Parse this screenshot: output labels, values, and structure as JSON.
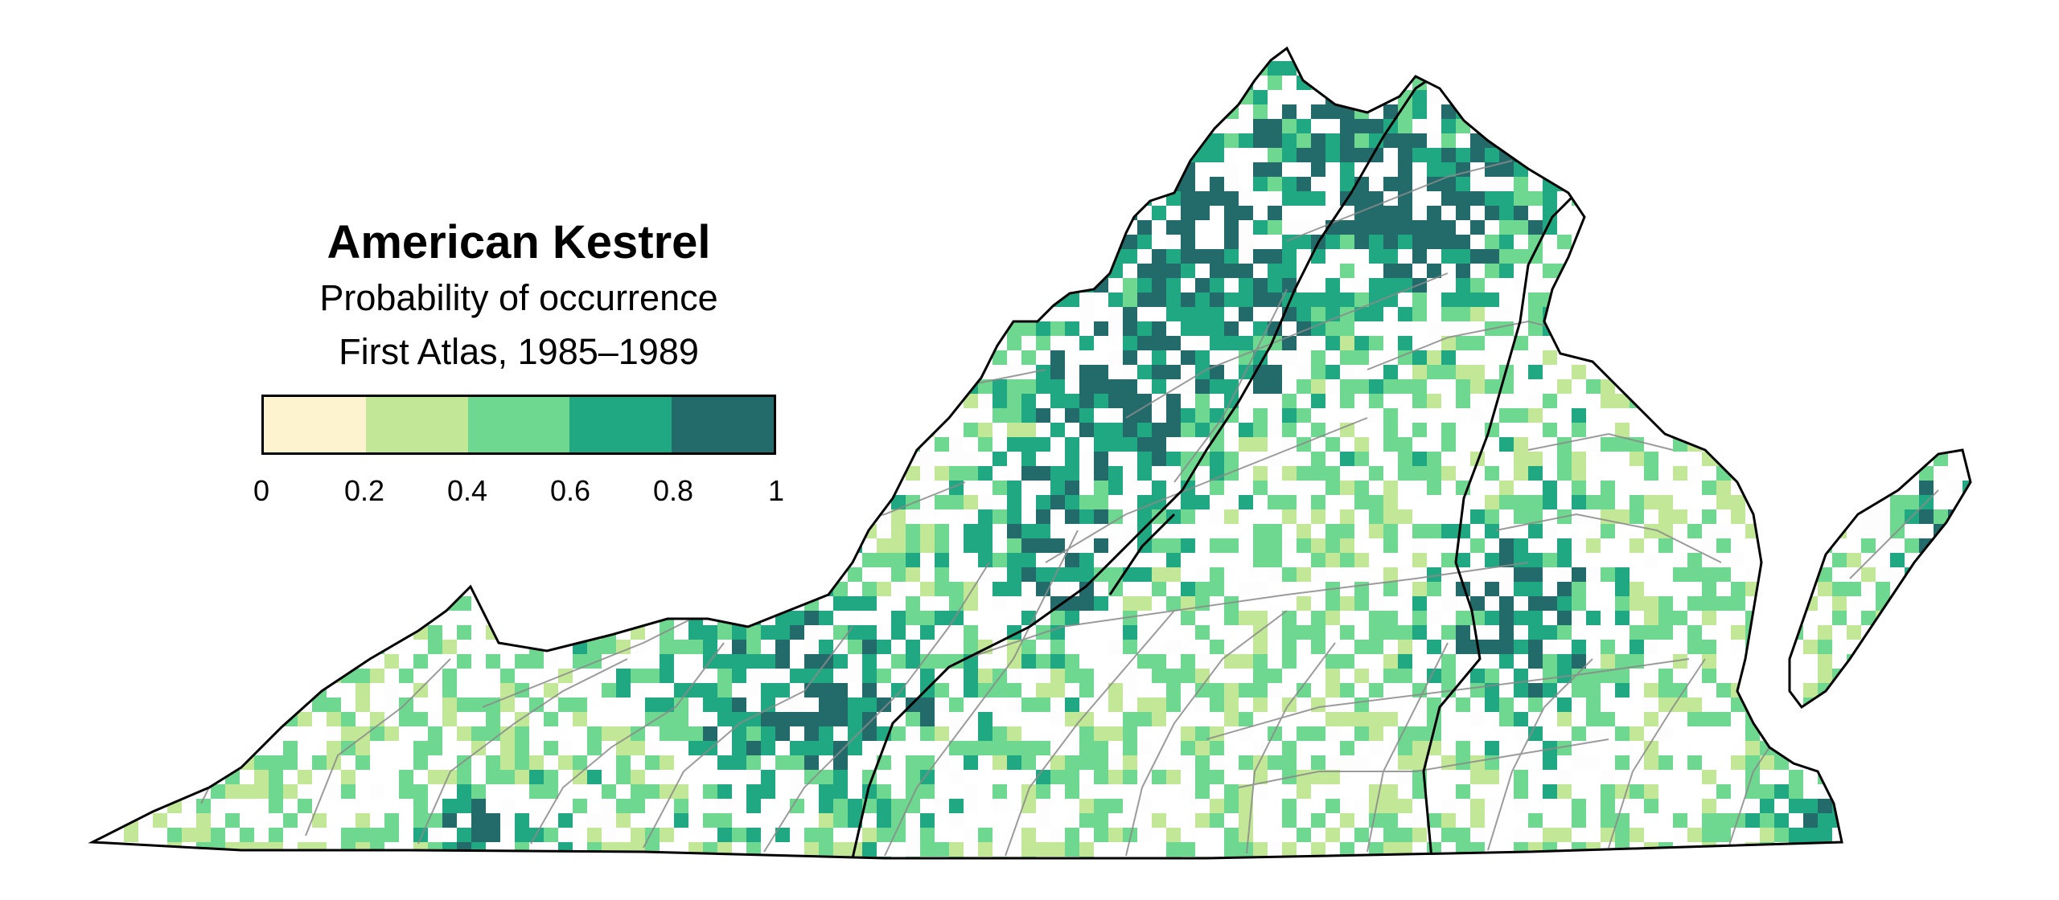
{
  "legend": {
    "title": "American Kestrel",
    "subtitle": "Probability of occurrence",
    "period": "First Atlas, 1985–1989",
    "bins": [
      {
        "from": 0,
        "to": 0.2,
        "color": "#fdf3cf"
      },
      {
        "from": 0.2,
        "to": 0.4,
        "color": "#c2e897"
      },
      {
        "from": 0.4,
        "to": 0.6,
        "color": "#6ed890"
      },
      {
        "from": 0.6,
        "to": 0.8,
        "color": "#1fa882"
      },
      {
        "from": 0.8,
        "to": 1,
        "color": "#236b6b"
      }
    ],
    "tick_labels": [
      "0",
      "0.2",
      "0.4",
      "0.6",
      "0.8",
      "1"
    ]
  },
  "map": {
    "region": "Virginia",
    "block_color_empty": "#fdfdfd",
    "outline_color": "#000000",
    "county_line_color": "#8a8a8a"
  }
}
